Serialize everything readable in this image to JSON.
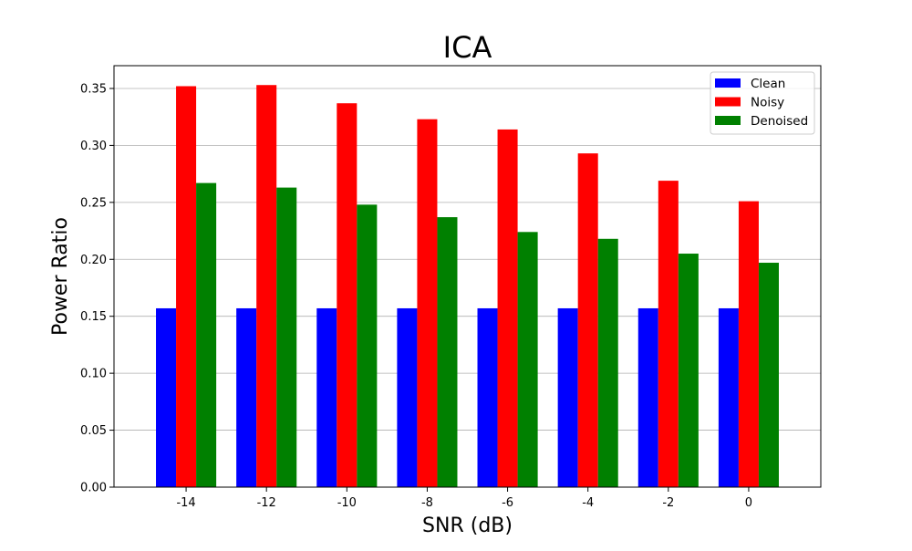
{
  "chart_data": {
    "type": "bar",
    "title": "ICA",
    "xlabel": "SNR (dB)",
    "ylabel": "Power Ratio",
    "categories": [
      "-14",
      "-12",
      "-10",
      "-8",
      "-6",
      "-4",
      "-2",
      "0"
    ],
    "series": [
      {
        "name": "Clean",
        "color": "#0000ff",
        "values": [
          0.157,
          0.157,
          0.157,
          0.157,
          0.157,
          0.157,
          0.157,
          0.157
        ]
      },
      {
        "name": "Noisy",
        "color": "#ff0000",
        "values": [
          0.352,
          0.353,
          0.337,
          0.323,
          0.314,
          0.293,
          0.269,
          0.251
        ]
      },
      {
        "name": "Denoised",
        "color": "#008000",
        "values": [
          0.267,
          0.263,
          0.248,
          0.237,
          0.224,
          0.218,
          0.205,
          0.197
        ]
      }
    ],
    "ylim": [
      0,
      0.37
    ],
    "yticks": [
      "0.00",
      "0.05",
      "0.10",
      "0.15",
      "0.20",
      "0.25",
      "0.30",
      "0.35"
    ],
    "grid": "horizontal",
    "legend_position": "top-right"
  }
}
